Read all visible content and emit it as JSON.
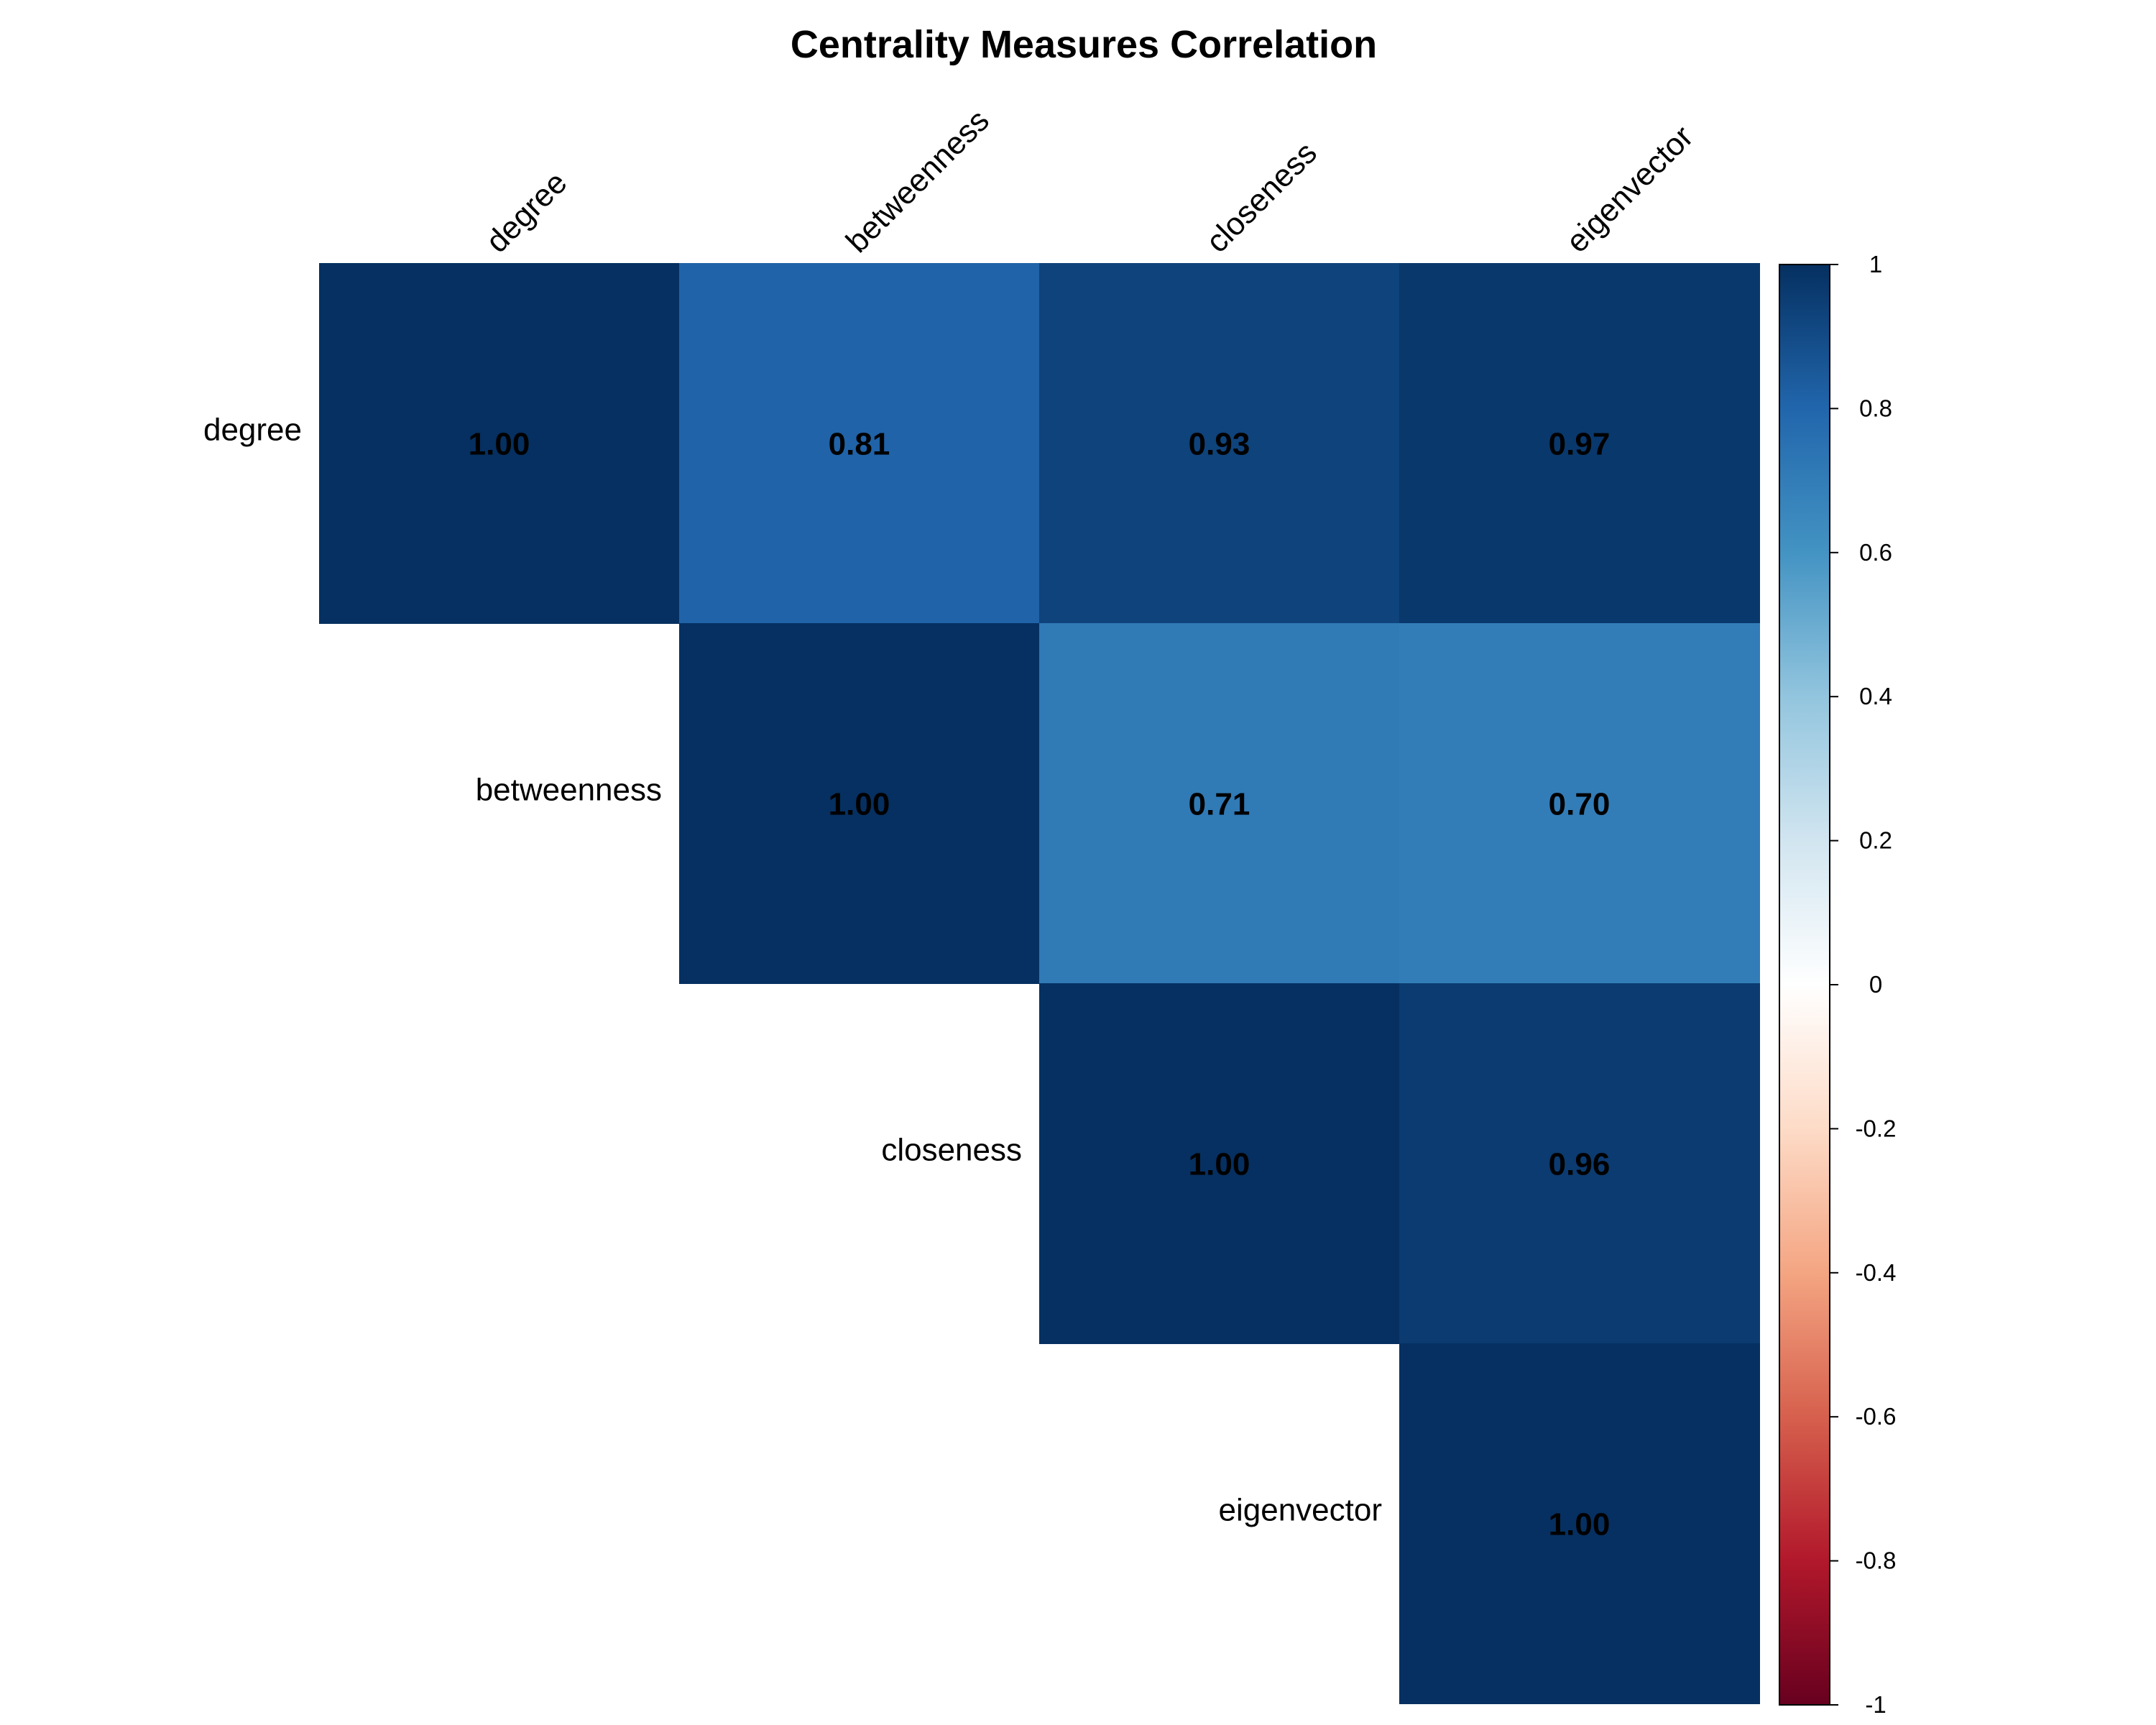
{
  "chart_data": {
    "type": "heatmap",
    "title": "Centrality Measures Correlation",
    "variables": [
      "degree",
      "betweenness",
      "closeness",
      "eigenvector"
    ],
    "matrix_shape": "upper-triangle",
    "values": [
      [
        1.0,
        0.81,
        0.93,
        0.97
      ],
      [
        null,
        1.0,
        0.71,
        0.7
      ],
      [
        null,
        null,
        1.0,
        0.96
      ],
      [
        null,
        null,
        null,
        1.0
      ]
    ],
    "value_labels": [
      [
        "1.00",
        "0.81",
        "0.93",
        "0.97"
      ],
      [
        null,
        "1.00",
        "0.71",
        "0.70"
      ],
      [
        null,
        null,
        "1.00",
        "0.96"
      ],
      [
        null,
        null,
        null,
        "1.00"
      ]
    ],
    "colorbar": {
      "range": [
        -1,
        1
      ],
      "ticks": [
        1,
        0.8,
        0.6,
        0.4,
        0.2,
        0,
        -0.2,
        -0.4,
        -0.6,
        -0.8,
        -1
      ],
      "tick_labels": [
        "1",
        "0.8",
        "0.6",
        "0.4",
        "0.2",
        "0",
        "-0.2",
        "-0.4",
        "-0.6",
        "-0.8",
        "-1"
      ],
      "colors": [
        "#67001F",
        "#B2182B",
        "#D6604D",
        "#F4A582",
        "#FDDBC7",
        "#FFFFFF",
        "#D1E5F0",
        "#92C5DE",
        "#4393C3",
        "#2166AC",
        "#053061"
      ]
    }
  }
}
